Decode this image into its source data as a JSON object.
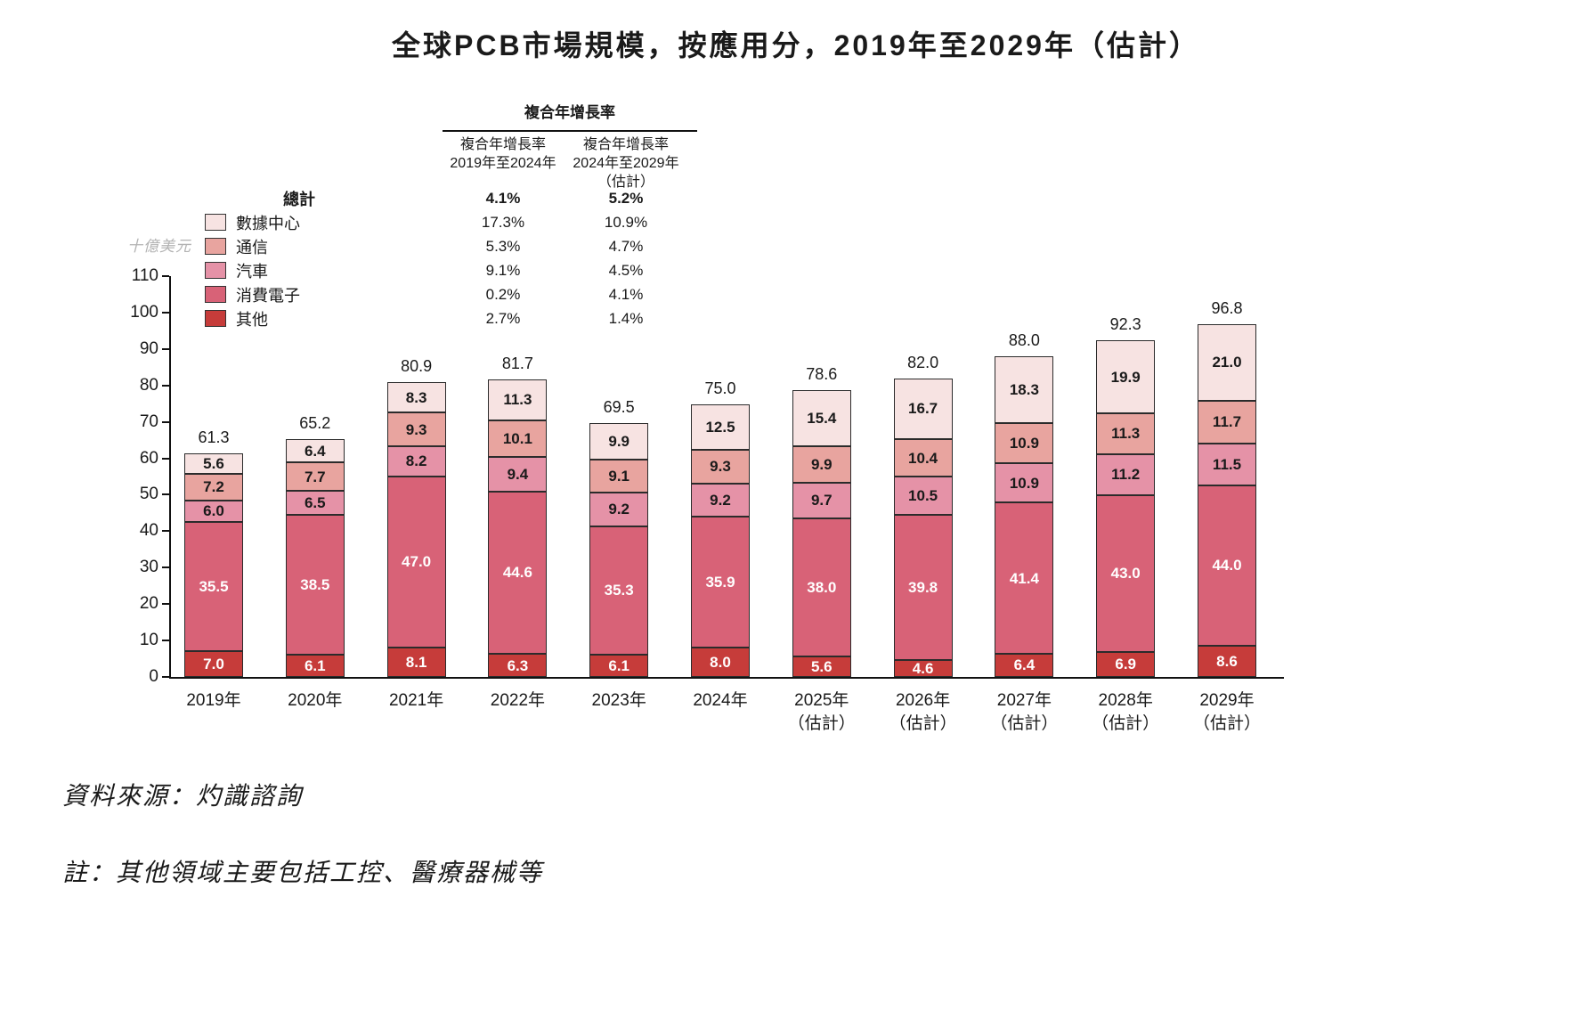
{
  "title": "全球PCB市場規模，按應用分，2019年至2029年（估計）",
  "unit_label": "十億美元",
  "cagr_table": {
    "title": "複合年增長率",
    "col1_lines": [
      "複合年增長率",
      "2019年至2024年"
    ],
    "col2_lines": [
      "複合年增長率",
      "2024年至2029年",
      "（估計）"
    ],
    "total_row": {
      "label": "總計",
      "v1": "4.1%",
      "v2": "5.2%"
    },
    "rows": [
      {
        "label": "數據中心",
        "color": "#f7e3e2",
        "v1": "17.3%",
        "v2": "10.9%"
      },
      {
        "label": "通信",
        "color": "#e8a49f",
        "v1": "5.3%",
        "v2": "4.7%"
      },
      {
        "label": "汽車",
        "color": "#e592a7",
        "v1": "9.1%",
        "v2": "4.5%"
      },
      {
        "label": "消費電子",
        "color": "#d86277",
        "v1": "0.2%",
        "v2": "4.1%"
      },
      {
        "label": "其他",
        "color": "#c63c3a",
        "v1": "2.7%",
        "v2": "1.4%"
      }
    ]
  },
  "chart_data": {
    "type": "bar",
    "stacked": true,
    "title": "全球PCB市場規模，按應用分，2019年至2029年（估計）",
    "ylabel": "十億美元",
    "ylim": [
      0,
      110
    ],
    "ytick_step": 10,
    "grid": false,
    "legend_position": "upper-left",
    "legend_order_top_to_bottom": [
      "數據中心",
      "通信",
      "汽車",
      "消費電子",
      "其他"
    ],
    "categories": [
      "2019年",
      "2020年",
      "2021年",
      "2022年",
      "2023年",
      "2024年",
      "2025年",
      "2026年",
      "2027年",
      "2028年",
      "2029年"
    ],
    "category_sublabels": [
      "",
      "",
      "",
      "",
      "",
      "",
      "（估計）",
      "（估計）",
      "（估計）",
      "（估計）",
      "（估計）"
    ],
    "series": [
      {
        "name": "其他",
        "color": "#c63c3a",
        "label_color": "#ffffff",
        "values": [
          7.0,
          6.1,
          8.1,
          6.3,
          6.1,
          8.0,
          5.6,
          4.6,
          6.4,
          6.9,
          8.6
        ]
      },
      {
        "name": "消費電子",
        "color": "#d86277",
        "label_color": "#ffffff",
        "values": [
          35.5,
          38.5,
          47.0,
          44.6,
          35.3,
          35.9,
          38.0,
          39.8,
          41.4,
          43.0,
          44.0
        ]
      },
      {
        "name": "汽車",
        "color": "#e592a7",
        "label_color": "#1a1a1a",
        "values": [
          6.0,
          6.5,
          8.2,
          9.4,
          9.2,
          9.2,
          9.7,
          10.5,
          10.9,
          11.2,
          11.5
        ]
      },
      {
        "name": "通信",
        "color": "#e8a49f",
        "label_color": "#1a1a1a",
        "values": [
          7.2,
          7.7,
          9.3,
          10.1,
          9.1,
          9.3,
          9.9,
          10.4,
          10.9,
          11.3,
          11.7
        ]
      },
      {
        "name": "數據中心",
        "color": "#f7e3e2",
        "label_color": "#1a1a1a",
        "values": [
          5.6,
          6.4,
          8.3,
          11.3,
          9.9,
          12.5,
          15.4,
          16.7,
          18.3,
          19.9,
          21.0
        ]
      }
    ],
    "totals": [
      61.3,
      65.2,
      80.9,
      81.7,
      69.5,
      75.0,
      78.6,
      82.0,
      88.0,
      92.3,
      96.8
    ]
  },
  "source": "資料來源：灼識諮詢",
  "note": "註：其他領域主要包括工控、醫療器械等"
}
